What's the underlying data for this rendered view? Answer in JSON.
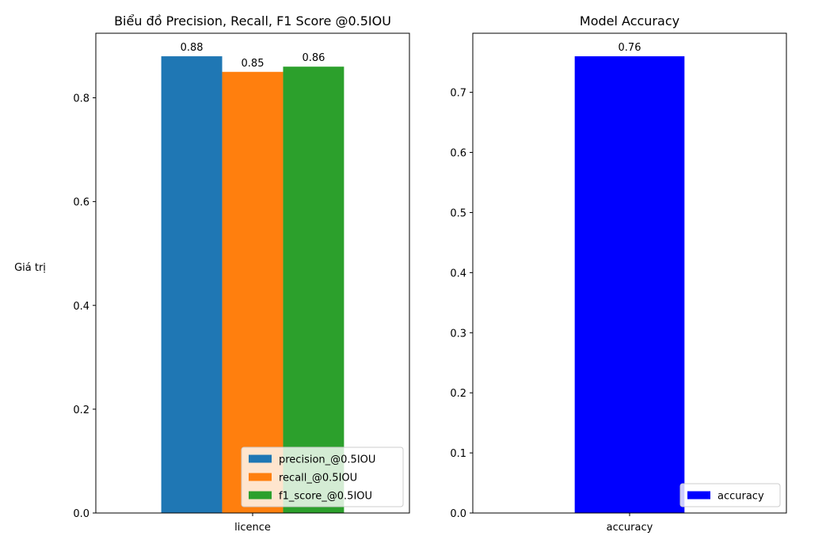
{
  "chart_data": [
    {
      "type": "bar",
      "title": "Biểu đồ Precision, Recall, F1 Score @0.5IOU",
      "xlabel": "",
      "ylabel": "Giá trị",
      "categories": [
        "licence"
      ],
      "series": [
        {
          "name": "precision_@0.5IOU",
          "values": [
            0.88
          ],
          "label": "0.88",
          "color": "#1f77b4"
        },
        {
          "name": "recall_@0.5IOU",
          "values": [
            0.85
          ],
          "label": "0.85",
          "color": "#ff7f0e"
        },
        {
          "name": "f1_score_@0.5IOU",
          "values": [
            0.86
          ],
          "label": "0.86",
          "color": "#2ca02c"
        }
      ],
      "ylim": [
        0,
        0.88
      ],
      "yticks": [
        0.0,
        0.2,
        0.4,
        0.6,
        0.8
      ],
      "ytick_labels": [
        "0.0",
        "0.2",
        "0.4",
        "0.6",
        "0.8"
      ],
      "legend": {
        "position": "lower-right"
      },
      "grid": false
    },
    {
      "type": "bar",
      "title": "Model Accuracy",
      "xlabel": "",
      "ylabel": "",
      "categories": [
        "accuracy"
      ],
      "series": [
        {
          "name": "accuracy",
          "values": [
            0.76
          ],
          "label": "0.76",
          "color": "#0000ff"
        }
      ],
      "ylim": [
        0,
        0.76
      ],
      "yticks": [
        0.0,
        0.1,
        0.2,
        0.3,
        0.4,
        0.5,
        0.6,
        0.7
      ],
      "ytick_labels": [
        "0.0",
        "0.1",
        "0.2",
        "0.3",
        "0.4",
        "0.5",
        "0.6",
        "0.7"
      ],
      "legend": {
        "position": "lower-right"
      },
      "grid": false
    }
  ]
}
